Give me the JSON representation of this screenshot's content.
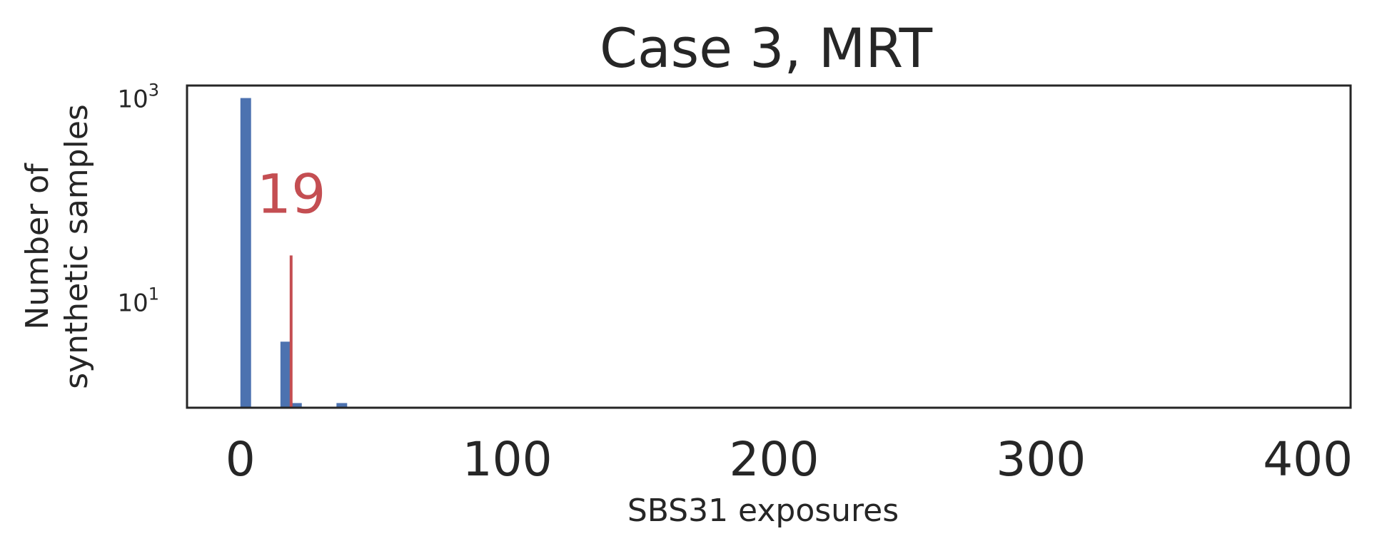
{
  "chart_data": {
    "type": "bar",
    "title": "Case 3, MRT",
    "xlabel": "SBS31 exposures",
    "ylabel_lines": [
      "Number of",
      "synthetic samples"
    ],
    "x_ticks": [
      {
        "value": 0,
        "label": "0"
      },
      {
        "value": 100,
        "label": "100"
      },
      {
        "value": 200,
        "label": "200"
      },
      {
        "value": 300,
        "label": "300"
      },
      {
        "value": 400,
        "label": "400"
      }
    ],
    "y_ticks": [
      {
        "value": 1000,
        "base": "10",
        "exp": "3"
      },
      {
        "value": 10,
        "base": "10",
        "exp": "1"
      }
    ],
    "xlim": [
      -20,
      416
    ],
    "ylim": [
      0.9,
      1300
    ],
    "yscale": "log",
    "grid": false,
    "bin_width": 4,
    "bars": [
      {
        "x": 0,
        "count": 980
      },
      {
        "x": 15,
        "count": 4
      },
      {
        "x": 19,
        "count": 1
      },
      {
        "x": 36,
        "count": 1
      }
    ],
    "marker": {
      "x": 19,
      "label": "19",
      "top_value": 28
    },
    "colors": {
      "bar": "#4c72b0",
      "marker": "#c44e52",
      "axis": "#262626",
      "text": "#262626"
    }
  }
}
